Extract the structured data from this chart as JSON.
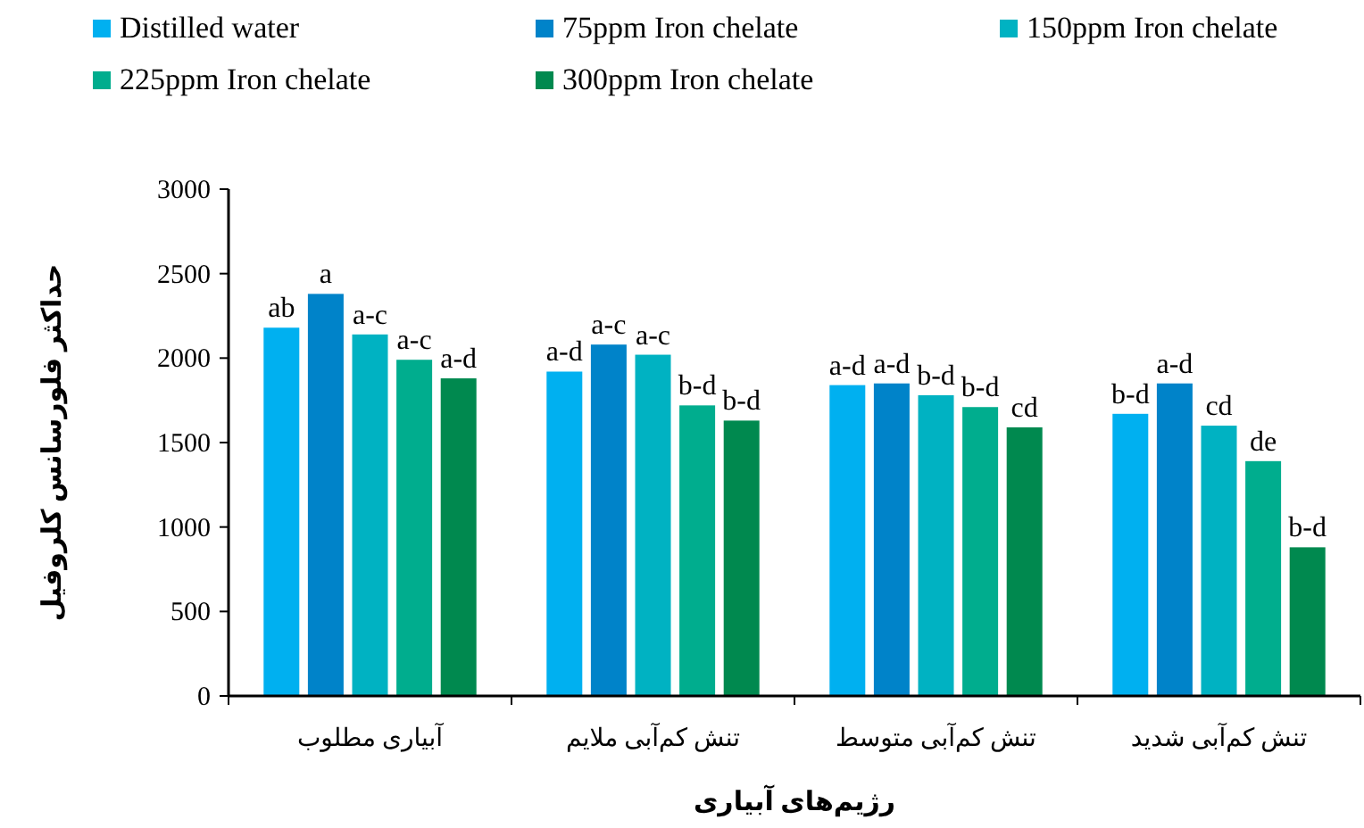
{
  "chart_data": {
    "type": "bar",
    "xlabel": "رژیم‌های آبیاری",
    "ylabel": "حداکثر فلورسانس کلروفیل",
    "categories": [
      "آبیاری مطلوب",
      "تنش کم‌آبی ملایم",
      "تنش کم‌آبی متوسط",
      "تنش کم‌آبی شدید"
    ],
    "series": [
      {
        "name": "Distilled water",
        "color": "#00b0f0",
        "values": [
          2180,
          1920,
          1840,
          1670
        ],
        "value_labels": [
          "ab",
          "a-d",
          "a-d",
          "b-d"
        ]
      },
      {
        "name": "75ppm Iron chelate",
        "color": "#0083c9",
        "values": [
          2380,
          2080,
          1850,
          1850
        ],
        "value_labels": [
          "a",
          "a-c",
          "a-d",
          "a-d"
        ]
      },
      {
        "name": "150ppm Iron chelate",
        "color": "#00b2c2",
        "values": [
          2140,
          2020,
          1780,
          1600
        ],
        "value_labels": [
          "a-c",
          "a-c",
          "b-d",
          "cd"
        ]
      },
      {
        "name": "225ppm Iron chelate",
        "color": "#00ad8e",
        "values": [
          1990,
          1720,
          1710,
          1390
        ],
        "value_labels": [
          "a-c",
          "b-d",
          "b-d",
          "de"
        ]
      },
      {
        "name": "300ppm Iron chelate",
        "color": "#00894f",
        "values": [
          1880,
          1630,
          1590,
          880
        ],
        "value_labels": [
          "a-d",
          "b-d",
          "cd",
          "b-d"
        ]
      }
    ],
    "ylim": [
      0,
      3000
    ],
    "yticks": [
      0,
      500,
      1000,
      1500,
      2000,
      2500,
      3000
    ],
    "grid": false,
    "legend": "top"
  }
}
